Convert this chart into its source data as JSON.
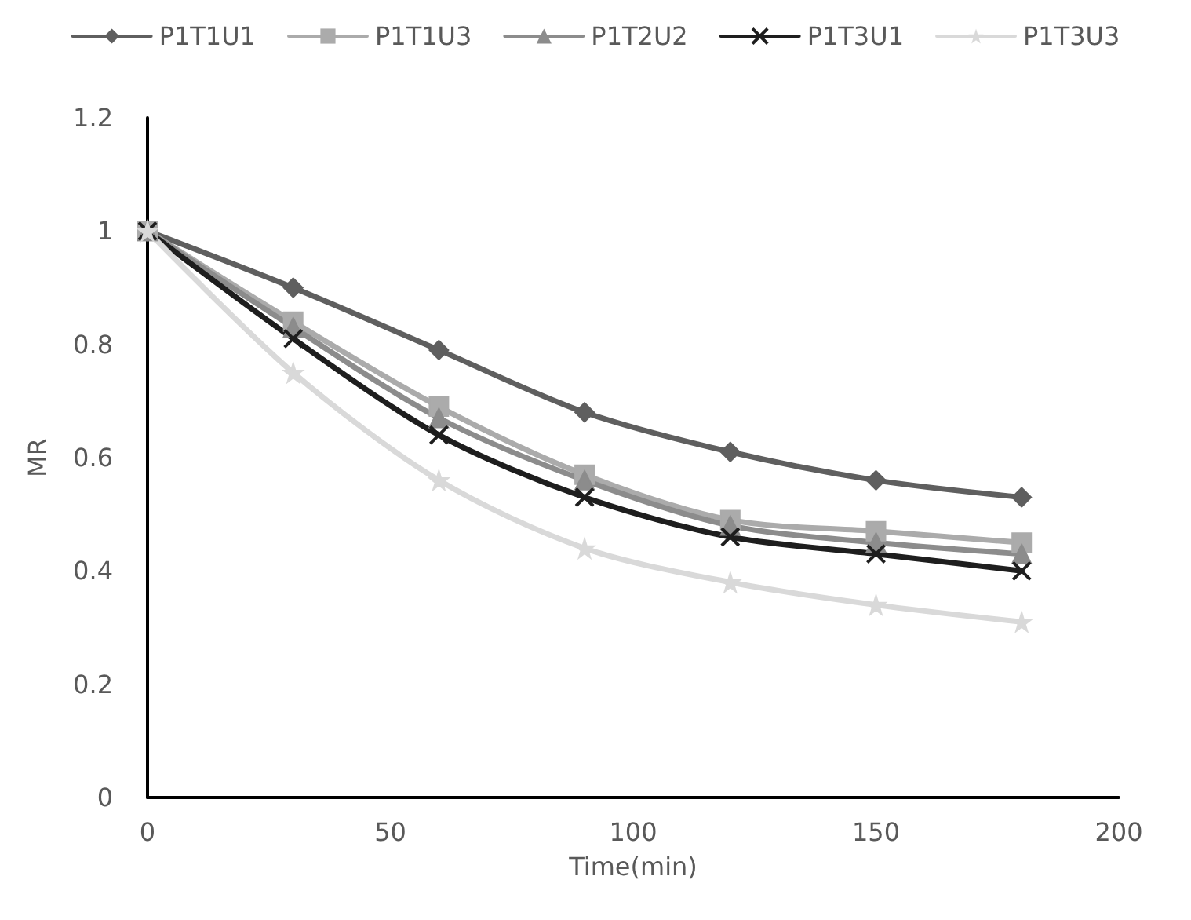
{
  "chart_data": {
    "type": "line",
    "xlabel": "Time(min)",
    "ylabel": "MR",
    "x": [
      0,
      30,
      60,
      90,
      120,
      150,
      180
    ],
    "series": [
      {
        "name": "P1T1U1",
        "color": "#5f5f5f",
        "marker": "diamond",
        "values": [
          1,
          0.9,
          0.79,
          0.68,
          0.61,
          0.56,
          0.53
        ]
      },
      {
        "name": "P1T1U3",
        "color": "#ababab",
        "marker": "square",
        "values": [
          1,
          0.84,
          0.69,
          0.57,
          0.49,
          0.47,
          0.45
        ]
      },
      {
        "name": "P1T2U2",
        "color": "#8c8c8c",
        "marker": "triangle",
        "values": [
          1,
          0.83,
          0.67,
          0.56,
          0.48,
          0.45,
          0.43
        ]
      },
      {
        "name": "P1T3U1",
        "color": "#1e1e1e",
        "marker": "cross",
        "values": [
          1,
          0.81,
          0.64,
          0.53,
          0.46,
          0.43,
          0.4
        ]
      },
      {
        "name": "P1T3U3",
        "color": "#d9d9d9",
        "marker": "star",
        "values": [
          1,
          0.75,
          0.56,
          0.44,
          0.38,
          0.34,
          0.31
        ]
      }
    ],
    "xlim": [
      0,
      200
    ],
    "xticks": [
      0,
      50,
      100,
      150,
      200
    ],
    "ylim": [
      0,
      1.2
    ],
    "yticks": [
      0,
      0.2,
      0.4,
      0.6,
      0.8,
      1,
      1.2
    ],
    "grid": false,
    "legend": "top",
    "line_style": "solid"
  }
}
